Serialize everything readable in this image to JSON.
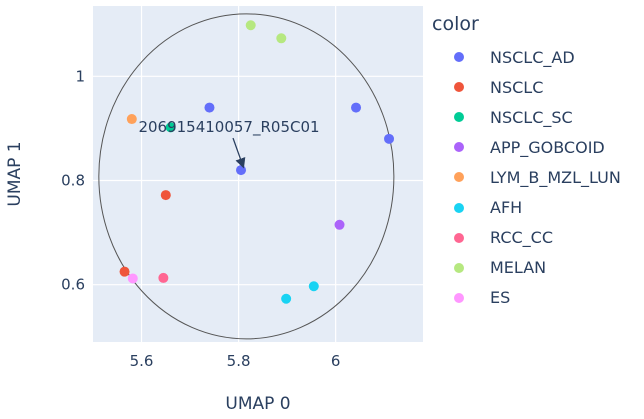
{
  "chart_data": {
    "type": "scatter",
    "xlabel": "UMAP 0",
    "ylabel": "UMAP 1",
    "xlim": [
      5.5,
      6.18
    ],
    "ylim": [
      0.49,
      1.135
    ],
    "xticks": [
      5.6,
      5.8,
      6
    ],
    "yticks": [
      0.6,
      0.8,
      1
    ],
    "xtick_labels": [
      "5.6",
      "5.8",
      "6"
    ],
    "ytick_labels": [
      "0.6",
      "0.8",
      "1"
    ],
    "grid": true,
    "background_color": "#e5ecf6",
    "legend": {
      "title": "color",
      "placement": "right"
    },
    "series": [
      {
        "name": "NSCLC_AD",
        "color": "#636efa",
        "points": [
          {
            "x": 5.74,
            "y": 0.94
          },
          {
            "x": 5.805,
            "y": 0.82
          },
          {
            "x": 6.042,
            "y": 0.94
          },
          {
            "x": 6.11,
            "y": 0.88
          }
        ]
      },
      {
        "name": "NSCLC",
        "color": "#ef553b",
        "points": [
          {
            "x": 5.65,
            "y": 0.772
          },
          {
            "x": 5.565,
            "y": 0.625
          }
        ]
      },
      {
        "name": "NSCLC_SC",
        "color": "#00cc96",
        "points": [
          {
            "x": 5.66,
            "y": 0.902
          }
        ]
      },
      {
        "name": "APP_GOBCOID",
        "color": "#ab63fa",
        "points": [
          {
            "x": 6.008,
            "y": 0.715
          }
        ]
      },
      {
        "name": "LYM_B_MZL_LUN",
        "color": "#ffa15a",
        "points": [
          {
            "x": 5.58,
            "y": 0.918
          }
        ]
      },
      {
        "name": "AFH",
        "color": "#19d3f3",
        "points": [
          {
            "x": 5.955,
            "y": 0.597
          },
          {
            "x": 5.898,
            "y": 0.573
          }
        ]
      },
      {
        "name": "RCC_CC",
        "color": "#ff6692",
        "points": [
          {
            "x": 5.645,
            "y": 0.613
          }
        ]
      },
      {
        "name": "MELAN",
        "color": "#b6e880",
        "points": [
          {
            "x": 5.825,
            "y": 1.098
          },
          {
            "x": 5.888,
            "y": 1.073
          }
        ]
      },
      {
        "name": "ES",
        "color": "#ff97ff",
        "points": [
          {
            "x": 5.582,
            "y": 0.612
          }
        ]
      }
    ],
    "circle": {
      "center": [
        5.816,
        0.808
      ],
      "radius_x": 0.304,
      "radius_y": 0.312
    },
    "annotation": {
      "text": "206915410057_R05C01",
      "x": 5.805,
      "y": 0.82
    }
  }
}
